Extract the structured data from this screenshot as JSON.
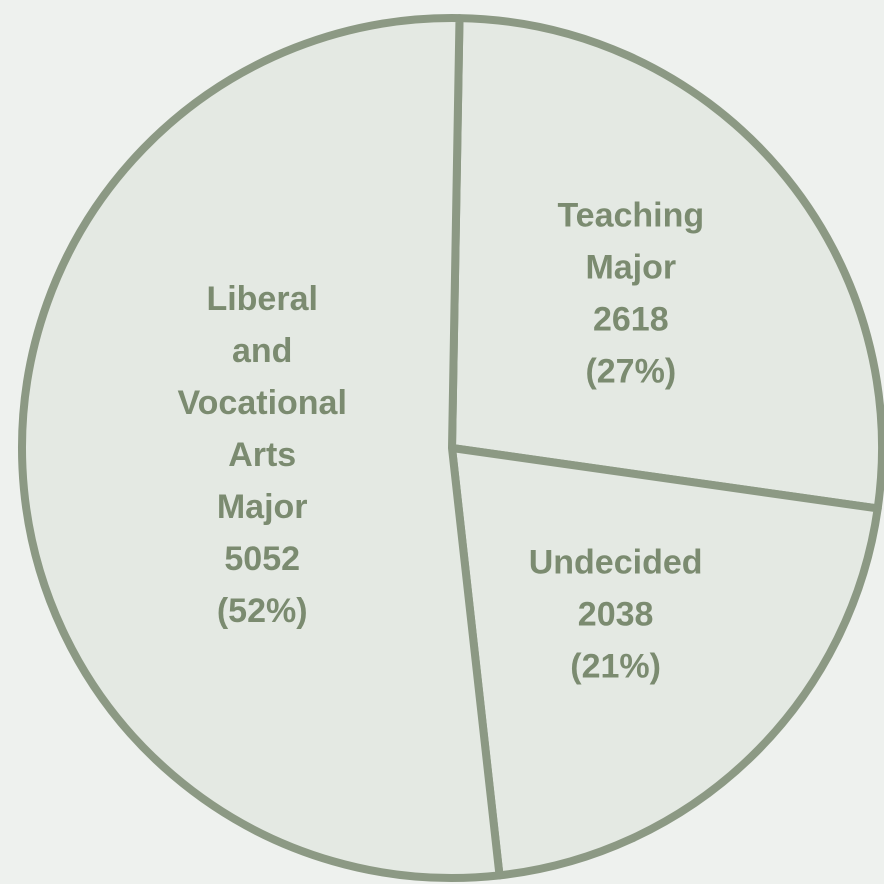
{
  "chart_data": {
    "type": "pie",
    "categories": [
      [
        "Teaching",
        "Major"
      ],
      [
        "Undecided"
      ],
      [
        "Liberal",
        "and",
        "Vocational",
        "Arts",
        "Major"
      ]
    ],
    "values": [
      2618,
      2038,
      5052
    ],
    "percents": [
      27,
      21,
      52
    ],
    "percent_labels": [
      "(27%)",
      "(21%)",
      "(52%)"
    ],
    "colors": [
      "#e4e9e3",
      "#e4e9e3",
      "#e4e9e3"
    ],
    "edge_color": "#8c9984",
    "text_color": "#7b8b70"
  }
}
